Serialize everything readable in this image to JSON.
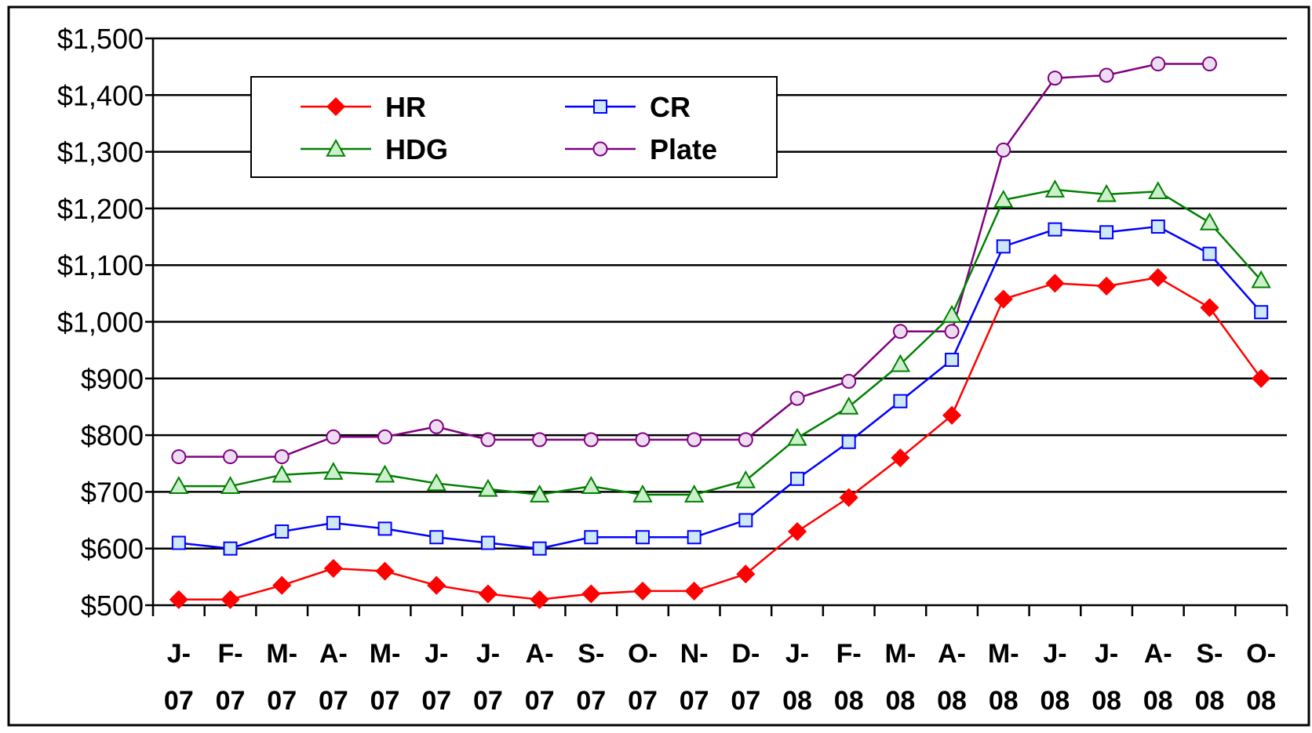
{
  "chart_data": {
    "type": "line",
    "title": "",
    "xlabel": "",
    "ylabel": "",
    "categories": [
      [
        "J-",
        "07"
      ],
      [
        "F-",
        "07"
      ],
      [
        "M-",
        "07"
      ],
      [
        "A-",
        "07"
      ],
      [
        "M-",
        "07"
      ],
      [
        "J-",
        "07"
      ],
      [
        "J-",
        "07"
      ],
      [
        "A-",
        "07"
      ],
      [
        "S-",
        "07"
      ],
      [
        "O-",
        "07"
      ],
      [
        "N-",
        "07"
      ],
      [
        "D-",
        "07"
      ],
      [
        "J-",
        "08"
      ],
      [
        "F-",
        "08"
      ],
      [
        "M-",
        "08"
      ],
      [
        "A-",
        "08"
      ],
      [
        "M-",
        "08"
      ],
      [
        "J-",
        "08"
      ],
      [
        "J-",
        "08"
      ],
      [
        "A-",
        "08"
      ],
      [
        "S-",
        "08"
      ],
      [
        "O-",
        "08"
      ]
    ],
    "ylim": [
      500,
      1500
    ],
    "yticks": [
      500,
      600,
      700,
      800,
      900,
      1000,
      1100,
      1200,
      1300,
      1400,
      1500
    ],
    "ytick_labels": [
      "$500",
      "$600",
      "$700",
      "$800",
      "$900",
      "$1,000",
      "$1,100",
      "$1,200",
      "$1,300",
      "$1,400",
      "$1,500"
    ],
    "grid": true,
    "legend_position": "top-left",
    "series": [
      {
        "name": "HR",
        "color": "#ff0000",
        "marker": "diamond",
        "values": [
          510,
          510,
          535,
          565,
          560,
          535,
          520,
          510,
          520,
          525,
          525,
          555,
          630,
          690,
          760,
          835,
          1040,
          1068,
          1063,
          1078,
          1025,
          900
        ]
      },
      {
        "name": "CR",
        "color": "#0000ff",
        "marker": "square",
        "values": [
          610,
          600,
          630,
          645,
          635,
          620,
          610,
          600,
          620,
          620,
          620,
          650,
          723,
          788,
          860,
          933,
          1133,
          1163,
          1158,
          1168,
          1120,
          1017
        ]
      },
      {
        "name": "HDG",
        "color": "#008000",
        "marker": "triangle",
        "values": [
          710,
          710,
          730,
          735,
          730,
          715,
          705,
          695,
          710,
          695,
          695,
          720,
          795,
          850,
          925,
          1012,
          1215,
          1233,
          1225,
          1230,
          1175,
          1073
        ]
      },
      {
        "name": "Plate",
        "color": "#800080",
        "marker": "circle",
        "values": [
          762,
          762,
          762,
          797,
          797,
          815,
          792,
          792,
          792,
          792,
          792,
          792,
          865,
          895,
          983,
          983,
          1303,
          1430,
          1435,
          1455,
          1455,
          null
        ]
      }
    ]
  }
}
